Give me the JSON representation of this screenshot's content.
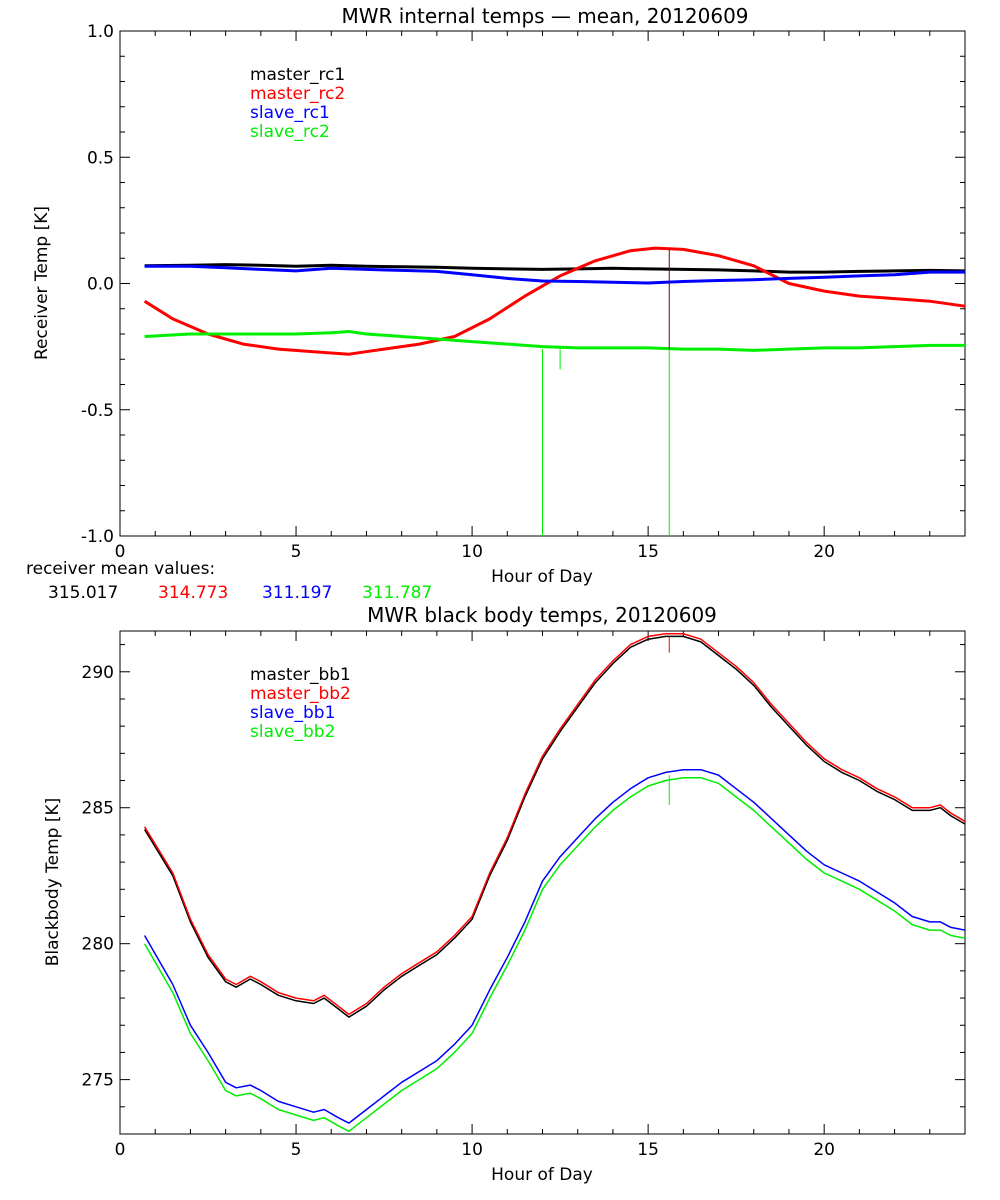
{
  "colors": {
    "black": "#000000",
    "red": "#ff0000",
    "blue": "#0000ff",
    "green": "#00ee00"
  },
  "receiver_mean": {
    "label": "receiver mean values:",
    "values": [
      {
        "text": "315.017",
        "color": "#000000"
      },
      {
        "text": "314.773",
        "color": "#ff0000"
      },
      {
        "text": "311.197",
        "color": "#0000ff"
      },
      {
        "text": "311.787",
        "color": "#00ee00"
      }
    ]
  },
  "chart_data": [
    {
      "type": "line",
      "title": "MWR internal temps — mean, 20120609",
      "xlabel": "Hour of Day",
      "ylabel": "Receiver Temp [K]",
      "xlim": [
        0,
        24
      ],
      "ylim": [
        -1.0,
        1.0
      ],
      "xticks": [
        0,
        5,
        10,
        15,
        20
      ],
      "yticks": [
        -1.0,
        -0.5,
        0.0,
        0.5,
        1.0
      ],
      "yticklabels": [
        "-1.0",
        "-0.5",
        "0.0",
        "0.5",
        "1.0"
      ],
      "legend_position": "top-left",
      "grid": false,
      "series": [
        {
          "name": "master_rc1",
          "color": "#000000",
          "x": [
            0.7,
            2,
            3,
            4,
            5,
            6,
            7,
            8,
            9,
            10,
            11,
            12,
            13,
            14,
            15,
            16,
            17,
            18,
            19,
            20,
            21,
            22,
            23,
            24
          ],
          "y": [
            0.07,
            0.072,
            0.075,
            0.072,
            0.068,
            0.072,
            0.068,
            0.066,
            0.064,
            0.06,
            0.058,
            0.056,
            0.058,
            0.06,
            0.058,
            0.056,
            0.054,
            0.05,
            0.045,
            0.045,
            0.048,
            0.05,
            0.052,
            0.05
          ]
        },
        {
          "name": "master_rc2",
          "color": "#ff0000",
          "x": [
            0.7,
            1.5,
            2.5,
            3.5,
            4.5,
            5.5,
            6.5,
            7.5,
            8.5,
            9.5,
            10.5,
            11.5,
            12.5,
            13.5,
            14.5,
            15.2,
            16,
            17,
            18,
            19,
            20,
            21,
            22,
            23,
            24
          ],
          "y": [
            -0.07,
            -0.14,
            -0.2,
            -0.24,
            -0.26,
            -0.27,
            -0.28,
            -0.26,
            -0.24,
            -0.21,
            -0.14,
            -0.05,
            0.03,
            0.09,
            0.13,
            0.14,
            0.135,
            0.11,
            0.07,
            0.0,
            -0.03,
            -0.05,
            -0.06,
            -0.07,
            -0.09
          ]
        },
        {
          "name": "slave_rc1",
          "color": "#0000ff",
          "x": [
            0.7,
            2,
            3,
            4,
            5,
            6,
            7,
            8,
            9,
            10,
            11,
            12,
            13,
            14,
            15,
            16,
            17,
            18,
            19,
            20,
            21,
            22,
            23,
            24
          ],
          "y": [
            0.068,
            0.068,
            0.062,
            0.056,
            0.05,
            0.06,
            0.056,
            0.052,
            0.048,
            0.035,
            0.02,
            0.01,
            0.008,
            0.005,
            0.002,
            0.008,
            0.012,
            0.015,
            0.02,
            0.025,
            0.03,
            0.035,
            0.045,
            0.045
          ]
        },
        {
          "name": "slave_rc2",
          "color": "#00ee00",
          "x": [
            0.7,
            2,
            3,
            4,
            5,
            6,
            6.5,
            7,
            8,
            9,
            10,
            11,
            12,
            13,
            14,
            15,
            16,
            17,
            18,
            19,
            20,
            21,
            22,
            23,
            24
          ],
          "y": [
            -0.21,
            -0.2,
            -0.2,
            -0.2,
            -0.2,
            -0.195,
            -0.19,
            -0.2,
            -0.21,
            -0.22,
            -0.23,
            -0.24,
            -0.25,
            -0.255,
            -0.255,
            -0.255,
            -0.26,
            -0.26,
            -0.265,
            -0.26,
            -0.255,
            -0.255,
            -0.25,
            -0.245,
            -0.245
          ]
        }
      ],
      "spikes": [
        {
          "x": 12.0,
          "y_from": -0.26,
          "y_to": -1.0,
          "color": "#00ee00"
        },
        {
          "x": 12.5,
          "y_from": -0.26,
          "y_to": -0.34,
          "color": "#00ee00"
        },
        {
          "x": 15.6,
          "y_from": -0.26,
          "y_to": -1.0,
          "color": "#00ee00"
        },
        {
          "x": 15.6,
          "y_from": 0.14,
          "y_to": -0.26,
          "color": "#7f0000"
        }
      ]
    },
    {
      "type": "line",
      "title": "MWR black body temps, 20120609",
      "xlabel": "Hour of Day",
      "ylabel": "Blackbody Temp [K]",
      "xlim": [
        0,
        24
      ],
      "ylim": [
        273,
        291.5
      ],
      "xticks": [
        0,
        5,
        10,
        15,
        20
      ],
      "yticks": [
        275,
        280,
        285,
        290
      ],
      "yticklabels": [
        "275",
        "280",
        "285",
        "290"
      ],
      "legend_position": "top-left",
      "grid": false,
      "series": [
        {
          "name": "master_bb1",
          "color": "#000000",
          "x": [
            0.7,
            1.5,
            2,
            2.5,
            3,
            3.3,
            3.7,
            4,
            4.5,
            5,
            5.5,
            5.8,
            6.2,
            6.5,
            7,
            7.5,
            8,
            8.5,
            9,
            9.5,
            10,
            10.5,
            11,
            11.5,
            12,
            12.5,
            13,
            13.5,
            14,
            14.5,
            15,
            15.5,
            16,
            16.5,
            17,
            17.5,
            18,
            18.5,
            19,
            19.5,
            20,
            20.5,
            21,
            21.5,
            22,
            22.5,
            23,
            23.3,
            23.6,
            24
          ],
          "y": [
            284.2,
            282.5,
            280.8,
            279.5,
            278.6,
            278.4,
            278.7,
            278.5,
            278.1,
            277.9,
            277.8,
            278.0,
            277.6,
            277.3,
            277.7,
            278.3,
            278.8,
            279.2,
            279.6,
            280.2,
            280.9,
            282.5,
            283.8,
            285.4,
            286.8,
            287.8,
            288.7,
            289.6,
            290.3,
            290.9,
            291.2,
            291.3,
            291.3,
            291.1,
            290.6,
            290.1,
            289.5,
            288.7,
            288.0,
            287.3,
            286.7,
            286.3,
            286.0,
            285.6,
            285.3,
            284.9,
            284.9,
            285.0,
            284.7,
            284.4
          ]
        },
        {
          "name": "master_bb2",
          "color": "#ff0000",
          "x": [
            0.7,
            1.5,
            2,
            2.5,
            3,
            3.3,
            3.7,
            4,
            4.5,
            5,
            5.5,
            5.8,
            6.2,
            6.5,
            7,
            7.5,
            8,
            8.5,
            9,
            9.5,
            10,
            10.5,
            11,
            11.5,
            12,
            12.5,
            13,
            13.5,
            14,
            14.5,
            15,
            15.5,
            16,
            16.5,
            17,
            17.5,
            18,
            18.5,
            19,
            19.5,
            20,
            20.5,
            21,
            21.5,
            22,
            22.5,
            23,
            23.3,
            23.6,
            24
          ],
          "y": [
            284.3,
            282.6,
            280.9,
            279.6,
            278.7,
            278.5,
            278.8,
            278.6,
            278.2,
            278.0,
            277.9,
            278.1,
            277.7,
            277.4,
            277.8,
            278.4,
            278.9,
            279.3,
            279.7,
            280.3,
            281.0,
            282.6,
            283.9,
            285.5,
            286.9,
            287.9,
            288.8,
            289.7,
            290.4,
            291.0,
            291.3,
            291.4,
            291.4,
            291.2,
            290.7,
            290.2,
            289.6,
            288.8,
            288.1,
            287.4,
            286.8,
            286.4,
            286.1,
            285.7,
            285.4,
            285.0,
            285.0,
            285.1,
            284.8,
            284.5
          ]
        },
        {
          "name": "slave_bb1",
          "color": "#0000ff",
          "x": [
            0.7,
            1.5,
            2,
            2.5,
            3,
            3.3,
            3.7,
            4,
            4.5,
            5,
            5.5,
            5.8,
            6.2,
            6.5,
            7,
            7.5,
            8,
            8.5,
            9,
            9.5,
            10,
            10.5,
            11,
            11.5,
            12,
            12.5,
            13,
            13.5,
            14,
            14.5,
            15,
            15.5,
            16,
            16.5,
            17,
            17.5,
            18,
            18.5,
            19,
            19.5,
            20,
            20.5,
            21,
            21.5,
            22,
            22.5,
            23,
            23.3,
            23.6,
            24
          ],
          "y": [
            280.3,
            278.5,
            277.0,
            276.0,
            274.9,
            274.7,
            274.8,
            274.6,
            274.2,
            274.0,
            273.8,
            273.9,
            273.6,
            273.4,
            273.9,
            274.4,
            274.9,
            275.3,
            275.7,
            276.3,
            277.0,
            278.3,
            279.5,
            280.8,
            282.3,
            283.2,
            283.9,
            284.6,
            285.2,
            285.7,
            286.1,
            286.3,
            286.4,
            286.4,
            286.2,
            285.7,
            285.2,
            284.6,
            284.0,
            283.4,
            282.9,
            282.6,
            282.3,
            281.9,
            281.5,
            281.0,
            280.8,
            280.8,
            280.6,
            280.5
          ]
        },
        {
          "name": "slave_bb2",
          "color": "#00ee00",
          "x": [
            0.7,
            1.5,
            2,
            2.5,
            3,
            3.3,
            3.7,
            4,
            4.5,
            5,
            5.5,
            5.8,
            6.2,
            6.5,
            7,
            7.5,
            8,
            8.5,
            9,
            9.5,
            10,
            10.5,
            11,
            11.5,
            12,
            12.5,
            13,
            13.5,
            14,
            14.5,
            15,
            15.5,
            16,
            16.5,
            17,
            17.5,
            18,
            18.5,
            19,
            19.5,
            20,
            20.5,
            21,
            21.5,
            22,
            22.5,
            23,
            23.3,
            23.6,
            24
          ],
          "y": [
            280.0,
            278.2,
            276.7,
            275.7,
            274.6,
            274.4,
            274.5,
            274.3,
            273.9,
            273.7,
            273.5,
            273.6,
            273.3,
            273.1,
            273.6,
            274.1,
            274.6,
            275.0,
            275.4,
            276.0,
            276.7,
            278.0,
            279.2,
            280.5,
            282.0,
            282.9,
            283.6,
            284.3,
            284.9,
            285.4,
            285.8,
            286.0,
            286.1,
            286.1,
            285.9,
            285.4,
            284.9,
            284.3,
            283.7,
            283.1,
            282.6,
            282.3,
            282.0,
            281.6,
            281.2,
            280.7,
            280.5,
            280.5,
            280.3,
            280.2
          ]
        }
      ],
      "spikes": [
        {
          "x": 15.6,
          "y_from": 286.2,
          "y_to": 285.1,
          "color": "#00ee00"
        },
        {
          "x": 15.6,
          "y_from": 291.3,
          "y_to": 290.7,
          "color": "#ff0000"
        }
      ]
    }
  ]
}
